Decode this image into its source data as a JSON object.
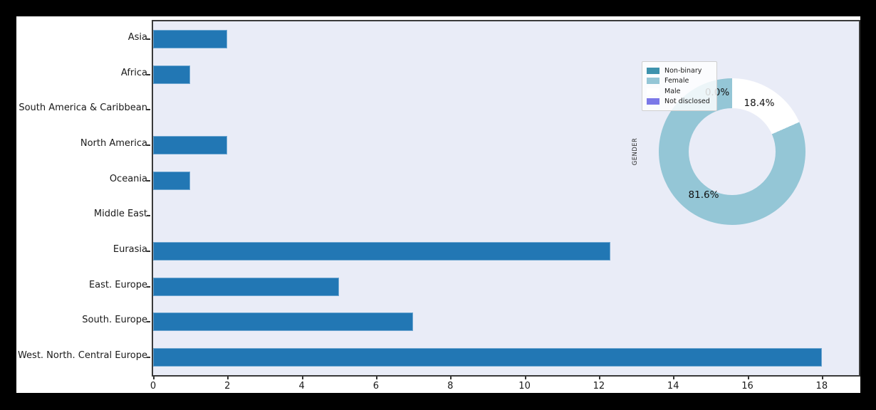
{
  "figure": {
    "frame_color": "#000000",
    "figure_bg": "#ffffff",
    "plot_bg": "#e9ecf7"
  },
  "chart_data": [
    {
      "type": "bar",
      "orientation": "horizontal",
      "title": "",
      "xlabel": "",
      "ylabel": "",
      "categories": [
        "Asia",
        "Africa",
        "South America & Caribbean",
        "North America",
        "Oceania",
        "Middle East",
        "Eurasia",
        "East. Europe",
        "South. Europe",
        "West. North. Central Europe"
      ],
      "values": [
        2,
        1,
        0,
        2,
        1,
        0,
        12.3,
        5,
        7,
        18
      ],
      "xticks": [
        0,
        2,
        4,
        6,
        8,
        10,
        12,
        14,
        16,
        18
      ],
      "xlim": [
        0,
        19.0
      ],
      "grid": false,
      "bar_color": "#2277b4",
      "bar_edge_color": "#6fa7d1",
      "plot_bg": "#e9ecf7"
    },
    {
      "type": "pie",
      "donut": true,
      "title": "",
      "ylabel": "GENDER",
      "labels": [
        "Non-binary",
        "Female",
        "Male",
        "Not disclosed"
      ],
      "values": [
        0.0,
        81.6,
        18.4,
        0.0
      ],
      "colors": [
        "#3d92ad",
        "#94c6d6",
        "#ffffff",
        "#7b78e8"
      ],
      "pct_labels": [
        "0.0%",
        "18.4%",
        "81.6%"
      ],
      "start_angle": 90,
      "direction": "counterclockwise",
      "legend_position": "upper left"
    }
  ]
}
